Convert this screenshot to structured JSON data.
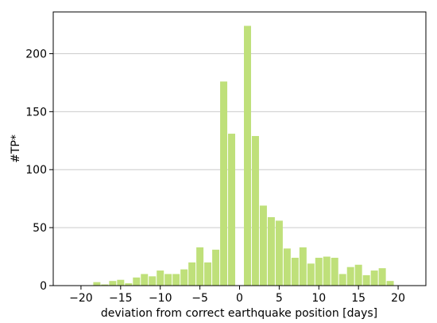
{
  "chart_data": {
    "type": "bar",
    "xlabel": "deviation from correct earthquake position [days]",
    "ylabel": "#TP*",
    "xlim": [
      -23.5,
      23.5
    ],
    "ylim": [
      0,
      236
    ],
    "x_ticks": [
      -20,
      -15,
      -10,
      -5,
      0,
      5,
      10,
      15,
      20
    ],
    "x_tick_labels": [
      "−20",
      "−15",
      "−10",
      "−5",
      "0",
      "5",
      "10",
      "15",
      "20"
    ],
    "y_ticks": [
      0,
      50,
      100,
      150,
      200
    ],
    "y_tick_labels": [
      "0",
      "50",
      "100",
      "150",
      "200"
    ],
    "grid": "horizontal",
    "bar_color": "#bfe07a",
    "x": [
      -20,
      -19,
      -18,
      -17,
      -16,
      -15,
      -14,
      -13,
      -12,
      -11,
      -10,
      -9,
      -8,
      -7,
      -6,
      -5,
      -4,
      -3,
      -2,
      -1,
      0,
      1,
      2,
      3,
      4,
      5,
      6,
      7,
      8,
      9,
      10,
      11,
      12,
      13,
      14,
      15,
      16,
      17,
      18,
      19,
      20
    ],
    "values": [
      0,
      0,
      3,
      1,
      4,
      5,
      2,
      7,
      10,
      8,
      13,
      10,
      10,
      14,
      20,
      33,
      20,
      31,
      176,
      131,
      0,
      224,
      129,
      69,
      59,
      56,
      32,
      24,
      33,
      19,
      24,
      25,
      24,
      10,
      16,
      18,
      9,
      13,
      15,
      4,
      0
    ]
  }
}
